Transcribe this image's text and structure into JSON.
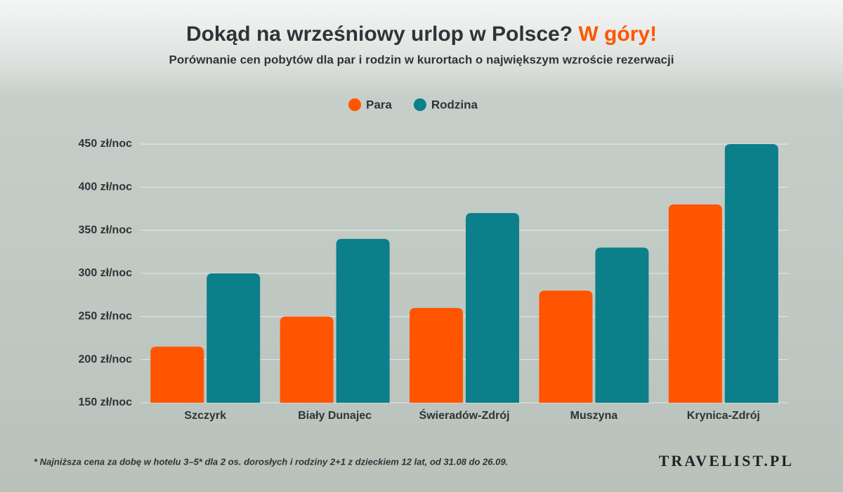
{
  "chart_data": {
    "type": "bar",
    "title": "Dokąd na wrześniowy urlop w Polsce?",
    "title_accent": "W góry!",
    "subtitle": "Porównanie cen pobytów dla par i rodzin w kurortach o największym wzroście rezerwacji",
    "categories": [
      "Szczyrk",
      "Biały Dunajec",
      "Świeradów-Zdrój",
      "Muszyna",
      "Krynica-Zdrój"
    ],
    "series": [
      {
        "name": "Para",
        "color": "#ff5500",
        "values": [
          215,
          250,
          260,
          280,
          380
        ]
      },
      {
        "name": "Rodzina",
        "color": "#0b7f8a",
        "values": [
          300,
          340,
          370,
          330,
          450
        ]
      }
    ],
    "ylim": [
      150,
      450
    ],
    "yticks": [
      {
        "value": 150,
        "label": "150 zł/noc"
      },
      {
        "value": 200,
        "label": "200 zł/noc"
      },
      {
        "value": 250,
        "label": "250 zł/noc"
      },
      {
        "value": 300,
        "label": "300 zł/noc"
      },
      {
        "value": 350,
        "label": "350 zł/noc"
      },
      {
        "value": 400,
        "label": "400 zł/noc"
      },
      {
        "value": 450,
        "label": "450 zł/noc"
      }
    ],
    "grid": true,
    "legend": "top",
    "footnote": "* Najniższa cena za dobę w hotelu 3–5* dla 2 os. dorosłych i rodziny 2+1 z dzieckiem 12 lat, od 31.08 do 26.09.",
    "brand": "TRAVELIST.PL"
  }
}
